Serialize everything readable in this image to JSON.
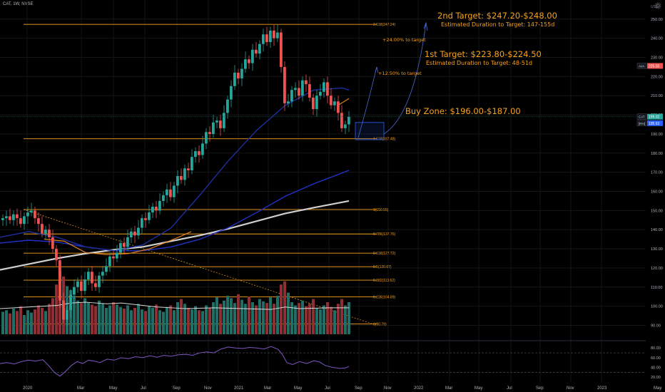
{
  "header": {
    "symbol_info": "CAT, 1W, NYSE"
  },
  "axis": {
    "currency": "USD"
  },
  "colors": {
    "up": "#26a69a",
    "down": "#ef5350",
    "fib": "#f7a21b",
    "ma_orange": "#e2831d",
    "ma_blue": "#1c2f9e",
    "ma_blue2": "#2132c8",
    "ma_white": "#cfcfcf",
    "rsi": "#7e57c2",
    "price_axis": "#b2b5be"
  },
  "annotations": {
    "target2_title": "2nd Target: $247.20-$248.00",
    "target2_duration": "Estimated Duration to Target: 147-155d",
    "target1_title": "1st Target: $223.80-$224.50",
    "target1_duration": "Estimated Duration to Target: 48-51d",
    "pct_24": "+24.00% to target",
    "pct_12_5": "+12.50% to target",
    "buy_zone": "Buy Zone: $196.00-$187.00"
  },
  "price_tags": [
    {
      "label": "AVA",
      "value": "225.55",
      "color": "#ef5350"
    },
    {
      "label": "CAT",
      "value": "199.02",
      "color": "#26a69a"
    },
    {
      "label": "[RH]",
      "value": "195.63",
      "color": "#2962ff"
    }
  ],
  "fib_levels": [
    {
      "label": "2.618(247.24)",
      "value": 247.24
    },
    {
      "label": "1.618(187.48)",
      "value": 187.48
    },
    {
      "label": "1(150.55)",
      "value": 150.55
    },
    {
      "label": "0.786(137.76)",
      "value": 137.76
    },
    {
      "label": "0.618(127.72)",
      "value": 127.72
    },
    {
      "label": "0.5(120.67)",
      "value": 120.67
    },
    {
      "label": "0.382(113.62)",
      "value": 113.62
    },
    {
      "label": "0.236(104.89)",
      "value": 104.89
    },
    {
      "label": "0(90.79)",
      "value": 90.79
    }
  ],
  "chart_data": {
    "type": "candlestick",
    "title": "CAT, 1W, NYSE",
    "x_ticks": [
      "2020",
      "Mar",
      "May",
      "Jul",
      "Sep",
      "Nov",
      "2021",
      "Mar",
      "May",
      "Jul",
      "Sep",
      "Nov",
      "2022",
      "Mar",
      "May",
      "Jul",
      "Sep",
      "Nov",
      "2023",
      "May"
    ],
    "y_ticks": [
      90,
      100,
      110,
      120,
      130,
      140,
      150,
      160,
      170,
      180,
      190,
      200,
      210,
      220,
      230,
      240,
      250
    ],
    "rsi_ticks": [
      80,
      60,
      40,
      20
    ],
    "ylim": [
      82,
      257
    ],
    "rsi_lim": [
      10,
      95
    ],
    "closes": [
      146,
      147,
      145,
      148,
      146,
      143,
      147,
      149,
      150,
      146,
      143,
      138,
      140,
      136,
      130,
      124,
      103,
      93,
      98,
      106,
      110,
      113,
      108,
      114,
      118,
      112,
      110,
      116,
      118,
      121,
      126,
      125,
      128,
      133,
      131,
      136,
      139,
      137,
      141,
      146,
      145,
      149,
      152,
      150,
      155,
      158,
      161,
      157,
      163,
      168,
      166,
      172,
      171,
      178,
      181,
      179,
      185,
      191,
      190,
      196,
      197,
      193,
      201,
      208,
      215,
      222,
      219,
      224,
      229,
      227,
      234,
      232,
      237,
      242,
      238,
      244,
      240,
      243,
      225,
      206,
      207,
      213,
      214,
      210,
      218,
      216,
      209,
      203,
      210,
      212,
      217,
      210,
      205,
      207,
      201,
      193,
      195,
      199
    ],
    "ma_white": [
      [
        0,
        119
      ],
      [
        40,
        122
      ],
      [
        80,
        125
      ],
      [
        120,
        127.5
      ],
      [
        160,
        129.5
      ],
      [
        200,
        131
      ],
      [
        240,
        134
      ],
      [
        280,
        137
      ],
      [
        320,
        140.5
      ],
      [
        360,
        144.5
      ],
      [
        400,
        148.5
      ],
      [
        440,
        151.5
      ],
      [
        489,
        155
      ]
    ],
    "ma_blue": [
      [
        0,
        133
      ],
      [
        40,
        134.5
      ],
      [
        80,
        133.5
      ],
      [
        120,
        131
      ],
      [
        160,
        129
      ],
      [
        200,
        129
      ],
      [
        240,
        131
      ],
      [
        280,
        135
      ],
      [
        320,
        141
      ],
      [
        360,
        149
      ],
      [
        400,
        157.5
      ],
      [
        440,
        164
      ],
      [
        489,
        171
      ]
    ],
    "ma_blue2": [
      [
        0,
        136
      ],
      [
        40,
        139
      ],
      [
        80,
        136
      ],
      [
        120,
        131
      ],
      [
        160,
        129
      ],
      [
        200,
        132
      ],
      [
        240,
        141
      ],
      [
        280,
        158
      ],
      [
        320,
        176
      ],
      [
        360,
        192
      ],
      [
        400,
        205
      ],
      [
        440,
        213
      ],
      [
        480,
        214
      ],
      [
        489,
        213
      ]
    ],
    "ma_orange": [
      [
        62,
        135
      ],
      [
        90,
        134
      ],
      [
        120,
        128
      ],
      [
        150,
        127
      ],
      [
        180,
        127.5
      ],
      [
        210,
        130
      ],
      [
        230,
        133
      ],
      [
        250,
        136
      ],
      [
        268,
        139
      ]
    ],
    "ma_orange2": [
      [
        474,
        205
      ],
      [
        489,
        208.5
      ]
    ],
    "rsi": [
      [
        0,
        48
      ],
      [
        10,
        50
      ],
      [
        20,
        47
      ],
      [
        30,
        52
      ],
      [
        40,
        55
      ],
      [
        50,
        53
      ],
      [
        60,
        56
      ],
      [
        68,
        44
      ],
      [
        76,
        30
      ],
      [
        84,
        22
      ],
      [
        92,
        32
      ],
      [
        100,
        44
      ],
      [
        108,
        52
      ],
      [
        116,
        48
      ],
      [
        124,
        55
      ],
      [
        132,
        53
      ],
      [
        140,
        50
      ],
      [
        150,
        57
      ],
      [
        160,
        55
      ],
      [
        170,
        60
      ],
      [
        180,
        58
      ],
      [
        190,
        62
      ],
      [
        200,
        60
      ],
      [
        210,
        64
      ],
      [
        220,
        61
      ],
      [
        230,
        65
      ],
      [
        240,
        63
      ],
      [
        250,
        66
      ],
      [
        260,
        67
      ],
      [
        270,
        65
      ],
      [
        280,
        70
      ],
      [
        290,
        72
      ],
      [
        300,
        70
      ],
      [
        310,
        78
      ],
      [
        320,
        82
      ],
      [
        330,
        80
      ],
      [
        340,
        79
      ],
      [
        350,
        81
      ],
      [
        360,
        80
      ],
      [
        370,
        78
      ],
      [
        380,
        83
      ],
      [
        390,
        77
      ],
      [
        396,
        66
      ],
      [
        402,
        50
      ],
      [
        410,
        46
      ],
      [
        420,
        52
      ],
      [
        430,
        48
      ],
      [
        440,
        54
      ],
      [
        448,
        51
      ],
      [
        456,
        44
      ],
      [
        466,
        40
      ],
      [
        476,
        38
      ],
      [
        484,
        39
      ],
      [
        489,
        42
      ]
    ],
    "volume_ma": [
      [
        0,
        72
      ],
      [
        40,
        74
      ],
      [
        80,
        76
      ],
      [
        100,
        79
      ],
      [
        120,
        80
      ],
      [
        150,
        78
      ],
      [
        170,
        79
      ],
      [
        190,
        77
      ],
      [
        220,
        74
      ],
      [
        260,
        72
      ],
      [
        300,
        73
      ],
      [
        340,
        72
      ],
      [
        380,
        71
      ],
      [
        400,
        74
      ],
      [
        420,
        72
      ],
      [
        460,
        73
      ],
      [
        489,
        73
      ]
    ],
    "volume": [
      28,
      30,
      26,
      32,
      29,
      35,
      24,
      30,
      27,
      31,
      36,
      33,
      29,
      38,
      45,
      62,
      78,
      72,
      60,
      55,
      48,
      42,
      39,
      45,
      40,
      37,
      35,
      42,
      38,
      33,
      36,
      40,
      37,
      34,
      32,
      36,
      30,
      33,
      38,
      31,
      29,
      35,
      33,
      37,
      30,
      28,
      34,
      36,
      30,
      40,
      44,
      38,
      33,
      31,
      35,
      30,
      29,
      36,
      33,
      40,
      46,
      38,
      42,
      48,
      45,
      39,
      50,
      43,
      38,
      47,
      40,
      36,
      44,
      41,
      39,
      46,
      38,
      48,
      62,
      66,
      52,
      40,
      36,
      39,
      42,
      35,
      38,
      44,
      33,
      31,
      36,
      40,
      34,
      30,
      38,
      44,
      36,
      40
    ]
  }
}
